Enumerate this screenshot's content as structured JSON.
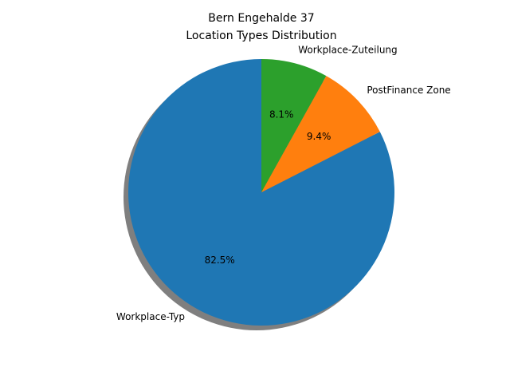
{
  "chart_data": {
    "type": "pie",
    "title_lines": [
      "Bern Engehalde 37",
      "Location Types Distribution"
    ],
    "slices": [
      {
        "label": "Workplace-Typ",
        "percent_label": "82.5%",
        "value": 82.5,
        "color": "#1f77b4"
      },
      {
        "label": "PostFinance Zone",
        "percent_label": "9.4%",
        "value": 9.4,
        "color": "#ff7f0e"
      },
      {
        "label": "Workplace-Zuteilung",
        "percent_label": "8.1%",
        "value": 8.1,
        "color": "#2ca02c"
      }
    ],
    "start_angle_deg": 90,
    "direction": "counterclockwise",
    "shadow": true,
    "legend": "none"
  }
}
